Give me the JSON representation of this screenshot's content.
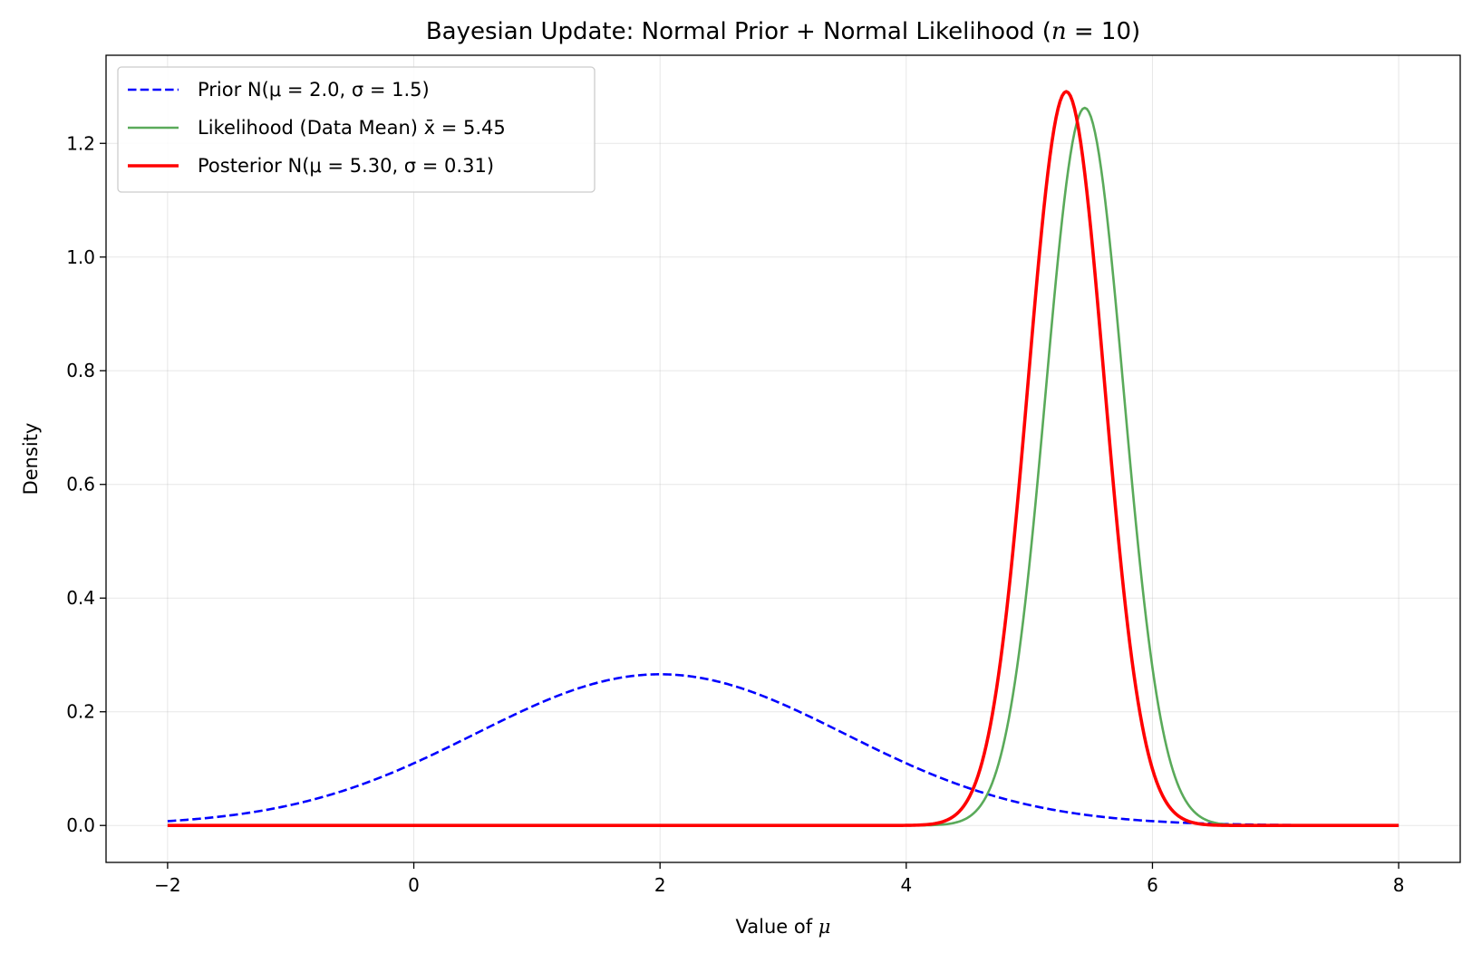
{
  "chart_data": {
    "type": "line",
    "title": "Bayesian Update: Normal Prior + Normal Likelihood (n = 10)",
    "xlabel": "Value of μ",
    "ylabel": "Density",
    "xlim": [
      -2.5,
      8.5
    ],
    "ylim": [
      -0.065,
      1.355
    ],
    "xticks": [
      -2,
      0,
      2,
      4,
      6,
      8
    ],
    "xtick_labels": [
      "−2",
      "0",
      "2",
      "4",
      "6",
      "8"
    ],
    "yticks": [
      0.0,
      0.2,
      0.4,
      0.6,
      0.8,
      1.0,
      1.2
    ],
    "ytick_labels": [
      "0.0",
      "0.2",
      "0.4",
      "0.6",
      "0.8",
      "1.0",
      "1.2"
    ],
    "grid": true,
    "legend_position": "top-left",
    "x_range": [
      -2,
      8
    ],
    "series": [
      {
        "name": "Prior N(μ = 2.0, σ = 1.5)",
        "distribution": "normal",
        "mean": 2.0,
        "sd": 1.5,
        "color": "#0000ff",
        "style": "dashed"
      },
      {
        "name": "Likelihood (Data Mean) x̄ = 5.45",
        "distribution": "normal",
        "mean": 5.45,
        "sd": 0.316,
        "color": "#5aaa5a",
        "style": "solid"
      },
      {
        "name": "Posterior N(μ = 5.30, σ = 0.31)",
        "distribution": "normal",
        "mean": 5.3,
        "sd": 0.309,
        "color": "#ff0000",
        "style": "solid"
      }
    ]
  }
}
